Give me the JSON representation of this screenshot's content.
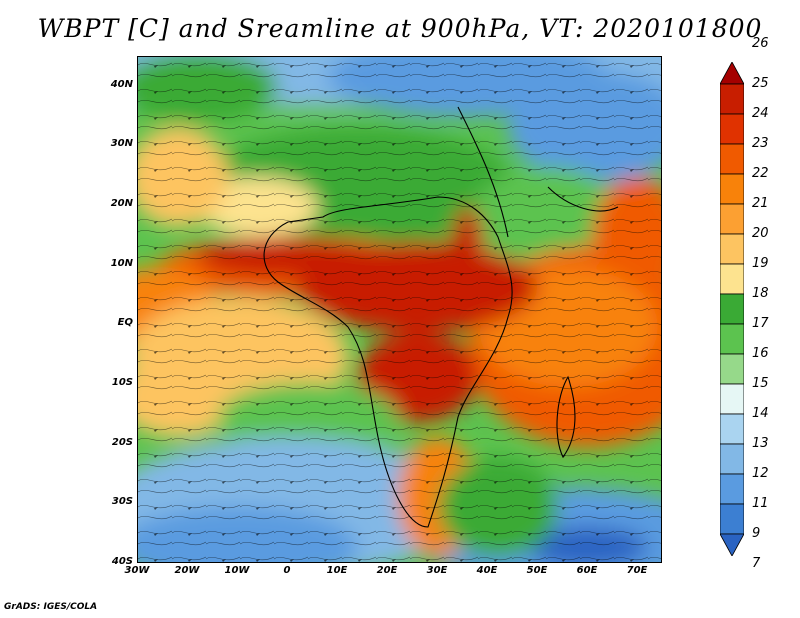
{
  "title": "WBPT [C] and Sreamline at 900hPa, VT: 2020101800",
  "credit": "GrADS: IGES/COLA",
  "axes": {
    "lat_labels": [
      "40N",
      "30N",
      "20N",
      "10N",
      "EQ",
      "10S",
      "20S",
      "30S",
      "40S"
    ],
    "lon_labels": [
      "30W",
      "20W",
      "10W",
      "0",
      "10E",
      "20E",
      "30E",
      "40E",
      "50E",
      "60E",
      "70E"
    ],
    "lat_range": [
      -40,
      45
    ],
    "lon_range": [
      -30,
      75
    ]
  },
  "colorbar": {
    "levels": [
      "26",
      "25",
      "24",
      "23",
      "22",
      "21",
      "20",
      "19",
      "18",
      "17",
      "16",
      "15",
      "14",
      "13",
      "12",
      "11",
      "9",
      "7"
    ],
    "colors": [
      "#a50000",
      "#c81e00",
      "#e03200",
      "#f05a00",
      "#f8820a",
      "#fca032",
      "#fdc461",
      "#fde38f",
      "#3aaa35",
      "#5cc34f",
      "#96d98a",
      "#e6f7f5",
      "#aad4f0",
      "#82b8e6",
      "#5a9be0",
      "#3c7fd2",
      "#2a63c2"
    ]
  }
}
